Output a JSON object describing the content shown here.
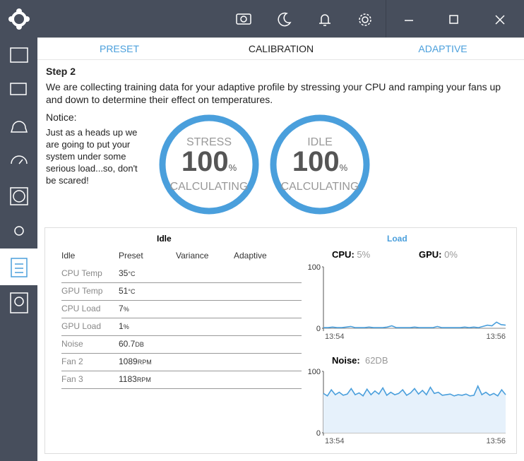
{
  "tabs": [
    "PRESET",
    "CALIBRATION",
    "ADAPTIVE"
  ],
  "step": {
    "title": "Step 2",
    "text": "We are collecting training data for your adaptive profile by stressing your CPU and ramping your fans up and down to determine their effect on temperatures."
  },
  "notice": {
    "title": "Notice:",
    "text": "Just as a heads up we are going to put your system under some serious load...so, don't be scared!"
  },
  "gauges": [
    {
      "label": "STRESS",
      "value": "100",
      "unit": "%",
      "status": "CALCULATING"
    },
    {
      "label": "IDLE",
      "value": "100",
      "unit": "%",
      "status": "CALCULATING"
    }
  ],
  "table": {
    "title": "Idle",
    "headers": [
      "Idle",
      "Preset",
      "Variance",
      "Adaptive"
    ],
    "rows": [
      [
        "CPU Temp",
        "35",
        "°C"
      ],
      [
        "GPU Temp",
        "51",
        "°C"
      ],
      [
        "CPU Load",
        "7",
        "%"
      ],
      [
        "GPU Load",
        "1",
        "%"
      ],
      [
        "Noise",
        "60.7",
        "DB"
      ],
      [
        "Fan 2",
        "1089",
        "RPM"
      ],
      [
        "Fan 3",
        "1183",
        "RPM"
      ]
    ]
  },
  "load": {
    "title": "Load",
    "cpu_label": "CPU:",
    "cpu_value": "5%",
    "gpu_label": "GPU:",
    "gpu_value": "0%",
    "noise_label": "Noise:",
    "noise_value": "62DB"
  },
  "chart_data": [
    {
      "type": "line",
      "color": "#4a9fdc",
      "ylim": [
        0,
        100
      ],
      "yticks": [
        0,
        100
      ],
      "xlabels": [
        "13:54",
        "13:56"
      ],
      "values": [
        1,
        1,
        2,
        1,
        1,
        2,
        3,
        1,
        1,
        1,
        2,
        1,
        1,
        1,
        2,
        4,
        1,
        1,
        1,
        1,
        2,
        1,
        1,
        1,
        1,
        3,
        1,
        1,
        1,
        1,
        1,
        2,
        1,
        2,
        1,
        3,
        5,
        4,
        10,
        6,
        5
      ]
    },
    {
      "type": "area",
      "color": "#4a9fdc",
      "fill": "#e6f1fb",
      "ylim": [
        0,
        100
      ],
      "yticks": [
        0,
        100
      ],
      "xlabels": [
        "13:54",
        "13:56"
      ],
      "values": [
        64,
        60,
        70,
        62,
        66,
        61,
        63,
        72,
        62,
        65,
        60,
        71,
        62,
        68,
        63,
        73,
        61,
        66,
        62,
        64,
        70,
        61,
        65,
        72,
        63,
        69,
        62,
        74,
        64,
        66,
        61,
        62,
        63,
        60,
        62,
        61,
        63,
        60,
        61,
        76,
        62,
        66,
        61,
        64,
        60,
        70,
        62
      ]
    }
  ]
}
